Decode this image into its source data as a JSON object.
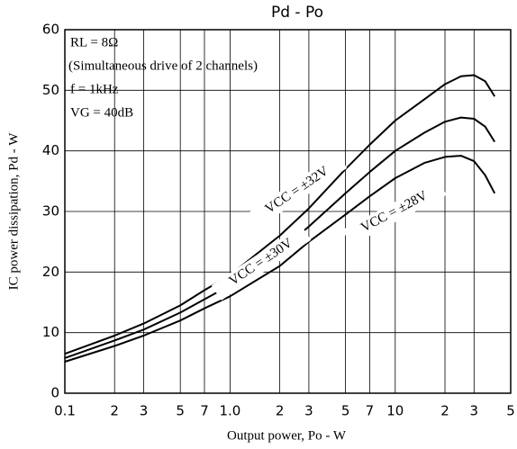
{
  "chart_data": {
    "type": "line",
    "title": "Pd - Po",
    "annotations": [
      "RL = 8Ω",
      "(Simultaneous drive of 2 channels)",
      "f = 1kHz",
      "VG = 40dB"
    ],
    "x_label": "Output power, Po - W",
    "y_label": "IC power dissipation, Pd - W",
    "x": [
      0.1,
      0.2,
      0.3,
      0.5,
      0.7,
      1,
      2,
      3,
      5,
      7,
      10,
      15,
      20,
      25,
      30,
      35,
      40
    ],
    "series": [
      {
        "name": "VCC = ±32V",
        "color": "#000000",
        "values": [
          6.5,
          9.5,
          11.5,
          14.5,
          17,
          19.5,
          26,
          30.5,
          37,
          41,
          45,
          48.5,
          51,
          52.3,
          52.5,
          51.5,
          49
        ]
      },
      {
        "name": "VCC = ±30V",
        "color": "#000000",
        "values": [
          5.8,
          8.7,
          10.5,
          13.3,
          15.5,
          17.8,
          23.5,
          27.5,
          33,
          36.5,
          40,
          43,
          44.8,
          45.5,
          45.3,
          44,
          41.5
        ]
      },
      {
        "name": "VCC = ±28V",
        "color": "#000000",
        "values": [
          5.2,
          7.8,
          9.5,
          12,
          14,
          16,
          21,
          25,
          29.5,
          32.5,
          35.5,
          38,
          39,
          39.2,
          38.3,
          36,
          33
        ]
      }
    ],
    "xscale": "log",
    "xlim": [
      0.1,
      50
    ],
    "xticks": [
      {
        "value": 0.1,
        "label": "0.1"
      },
      {
        "value": 0.2,
        "label": "2"
      },
      {
        "value": 0.3,
        "label": "3"
      },
      {
        "value": 0.5,
        "label": "5"
      },
      {
        "value": 0.7,
        "label": "7"
      },
      {
        "value": 1,
        "label": "1.0"
      },
      2,
      3,
      5,
      7,
      10,
      {
        "value": 20,
        "label": "2"
      },
      {
        "value": 30,
        "label": "3"
      },
      {
        "value": 50,
        "label": "5"
      }
    ],
    "ylim": [
      0,
      60
    ],
    "yticks": [
      0,
      10,
      20,
      30,
      40,
      50,
      60
    ],
    "grid": true
  }
}
